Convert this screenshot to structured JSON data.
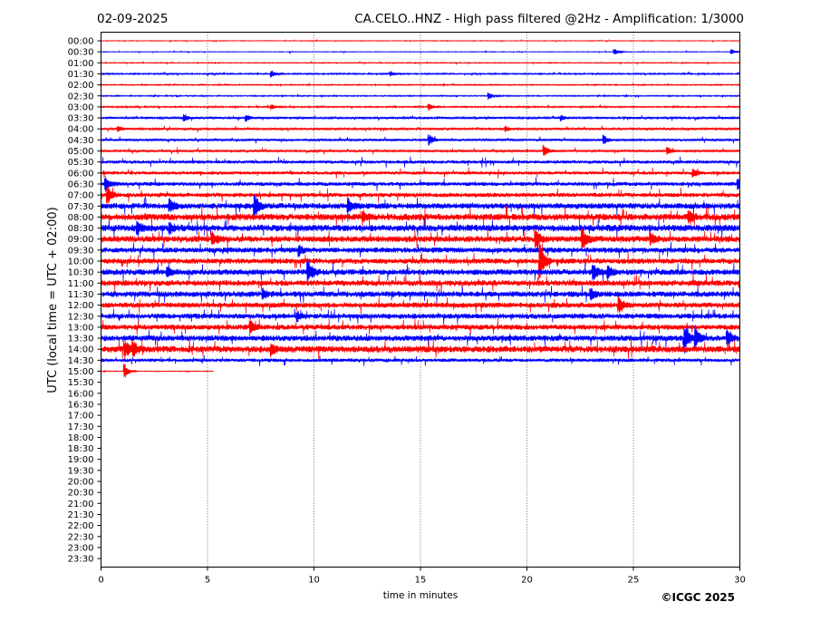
{
  "header": {
    "date": "02-09-2025",
    "title": "CA.CELO..HNZ - High pass filtered @2Hz - Amplification: 1/3000"
  },
  "copyright": "©ICGC 2025",
  "colors": {
    "odd_trace": "#ff0000",
    "even_trace": "#0000ff",
    "grid": "#000000"
  },
  "chart_data": {
    "type": "line",
    "subtype": "helicorder",
    "xlabel": "time in minutes",
    "ylabel": "UTC (local time = UTC + 02:00)",
    "xlim": [
      0,
      30
    ],
    "x_ticks": [
      "0",
      "5",
      "10",
      "15",
      "20",
      "25",
      "30"
    ],
    "grid": "vertical dotted lines at x = 5, 10, 15, 20, 25",
    "row_labels": [
      "00:00",
      "00:30",
      "01:00",
      "01:30",
      "02:00",
      "02:30",
      "03:00",
      "03:30",
      "04:00",
      "04:30",
      "05:00",
      "05:30",
      "06:00",
      "06:30",
      "07:00",
      "07:30",
      "08:00",
      "08:30",
      "09:00",
      "09:30",
      "10:00",
      "10:30",
      "11:00",
      "11:30",
      "12:00",
      "12:30",
      "13:00",
      "13:30",
      "14:00",
      "14:30",
      "15:00",
      "15:30",
      "16:00",
      "16:30",
      "17:00",
      "17:30",
      "18:00",
      "18:30",
      "19:00",
      "19:30",
      "20:00",
      "20:30",
      "21:00",
      "21:30",
      "22:00",
      "22:30",
      "23:00",
      "23:30"
    ],
    "trace_color_cycle": [
      "red",
      "blue"
    ],
    "last_row_end_minute": 5.3,
    "noise_level": [
      0.3,
      0.3,
      0.4,
      0.6,
      0.5,
      0.5,
      0.6,
      0.9,
      0.9,
      1.0,
      1.0,
      1.5,
      1.5,
      1.8,
      2.0,
      2.6,
      3.0,
      3.0,
      2.8,
      2.4,
      2.4,
      2.6,
      2.6,
      2.6,
      2.4,
      2.4,
      2.4,
      2.6,
      3.0,
      1.6,
      0.3
    ],
    "events": [
      {
        "row": "00:30",
        "minute": 24.1,
        "amplitude": 4
      },
      {
        "row": "00:30",
        "minute": 29.6,
        "amplitude": 3
      },
      {
        "row": "01:30",
        "minute": 8.0,
        "amplitude": 4
      },
      {
        "row": "01:30",
        "minute": 13.6,
        "amplitude": 3
      },
      {
        "row": "02:30",
        "minute": 18.2,
        "amplitude": 4
      },
      {
        "row": "03:00",
        "minute": 15.4,
        "amplitude": 4
      },
      {
        "row": "03:00",
        "minute": 8.0,
        "amplitude": 3
      },
      {
        "row": "03:30",
        "minute": 3.9,
        "amplitude": 4
      },
      {
        "row": "03:30",
        "minute": 6.8,
        "amplitude": 4
      },
      {
        "row": "03:30",
        "minute": 21.6,
        "amplitude": 3
      },
      {
        "row": "04:00",
        "minute": 0.8,
        "amplitude": 3
      },
      {
        "row": "04:00",
        "minute": 19.0,
        "amplitude": 3
      },
      {
        "row": "04:30",
        "minute": 15.4,
        "amplitude": 6
      },
      {
        "row": "04:30",
        "minute": 23.6,
        "amplitude": 5
      },
      {
        "row": "05:00",
        "minute": 20.8,
        "amplitude": 6
      },
      {
        "row": "05:00",
        "minute": 26.6,
        "amplitude": 4
      },
      {
        "row": "06:00",
        "minute": 27.8,
        "amplitude": 5
      },
      {
        "row": "06:30",
        "minute": 0.2,
        "amplitude": 8
      },
      {
        "row": "06:30",
        "minute": 29.9,
        "amplitude": 6
      },
      {
        "row": "07:00",
        "minute": 0.3,
        "amplitude": 10
      },
      {
        "row": "07:30",
        "minute": 3.2,
        "amplitude": 8
      },
      {
        "row": "07:30",
        "minute": 7.2,
        "amplitude": 14
      },
      {
        "row": "07:30",
        "minute": 11.6,
        "amplitude": 8
      },
      {
        "row": "08:00",
        "minute": 12.3,
        "amplitude": 6
      },
      {
        "row": "08:00",
        "minute": 27.6,
        "amplitude": 7
      },
      {
        "row": "08:30",
        "minute": 1.7,
        "amplitude": 7
      },
      {
        "row": "08:30",
        "minute": 3.2,
        "amplitude": 6
      },
      {
        "row": "09:00",
        "minute": 5.2,
        "amplitude": 7
      },
      {
        "row": "09:00",
        "minute": 20.4,
        "amplitude": 10
      },
      {
        "row": "09:00",
        "minute": 22.6,
        "amplitude": 12
      },
      {
        "row": "09:00",
        "minute": 25.8,
        "amplitude": 6
      },
      {
        "row": "09:30",
        "minute": 9.3,
        "amplitude": 6
      },
      {
        "row": "10:00",
        "minute": 20.6,
        "amplitude": 24
      },
      {
        "row": "10:30",
        "minute": 3.1,
        "amplitude": 6
      },
      {
        "row": "10:30",
        "minute": 9.7,
        "amplitude": 14
      },
      {
        "row": "10:30",
        "minute": 23.1,
        "amplitude": 9
      },
      {
        "row": "10:30",
        "minute": 23.8,
        "amplitude": 7
      },
      {
        "row": "11:30",
        "minute": 7.6,
        "amplitude": 5
      },
      {
        "row": "11:30",
        "minute": 23.0,
        "amplitude": 6
      },
      {
        "row": "12:00",
        "minute": 24.3,
        "amplitude": 8
      },
      {
        "row": "12:30",
        "minute": 9.2,
        "amplitude": 5
      },
      {
        "row": "13:00",
        "minute": 7.0,
        "amplitude": 8
      },
      {
        "row": "13:30",
        "minute": 27.4,
        "amplitude": 14
      },
      {
        "row": "13:30",
        "minute": 27.9,
        "amplitude": 12
      },
      {
        "row": "13:30",
        "minute": 29.4,
        "amplitude": 8
      },
      {
        "row": "14:00",
        "minute": 1.1,
        "amplitude": 10
      },
      {
        "row": "14:00",
        "minute": 1.5,
        "amplitude": 8
      },
      {
        "row": "14:00",
        "minute": 8.0,
        "amplitude": 6
      },
      {
        "row": "15:00",
        "minute": 1.1,
        "amplitude": 9
      }
    ]
  }
}
